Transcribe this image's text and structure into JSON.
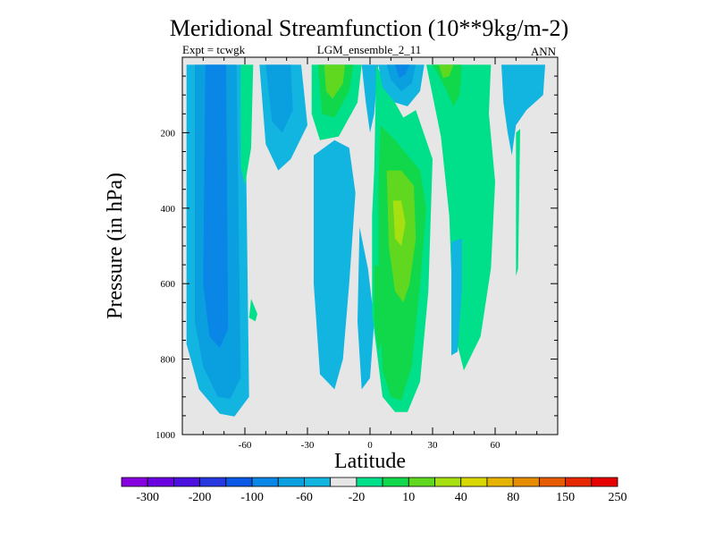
{
  "chart_data": {
    "type": "contour",
    "title": "Meridional Streamfunction (10**9kg/m-2)",
    "subtitle_left": "Expt = tcwgk",
    "subtitle_center": "LGM_ensemble_2_11",
    "subtitle_right": "ANN",
    "xlabel": "Latitude",
    "ylabel": "Pressure (in hPa)",
    "xlim": [
      -90,
      90
    ],
    "ylim": [
      1000,
      0
    ],
    "x_ticks": [
      -60,
      -30,
      0,
      30,
      60
    ],
    "y_ticks": [
      200,
      400,
      600,
      800,
      1000
    ],
    "colorbar": {
      "labels": [
        "-300",
        "-200",
        "-100",
        "-60",
        "-20",
        "10",
        "40",
        "80",
        "150",
        "250"
      ],
      "colors": [
        "#8700e0",
        "#6a00e0",
        "#4b10e0",
        "#2838e0",
        "#0a58e6",
        "#0a86e6",
        "#0aa0e0",
        "#12b4e0",
        "#e6e6e6",
        "#00e08a",
        "#10d84a",
        "#60d820",
        "#a6e010",
        "#d8d800",
        "#e6b400",
        "#e68c00",
        "#e65a00",
        "#e62800",
        "#e60000"
      ]
    },
    "regions": [
      {
        "level": "-20",
        "color": "#12b4e0",
        "points": [
          [
            -88,
            20
          ],
          [
            -60,
            20
          ],
          [
            -58,
            900
          ],
          [
            -65,
            952
          ],
          [
            -72,
            945
          ],
          [
            -82,
            880
          ],
          [
            -88,
            760
          ]
        ]
      },
      {
        "level": "-60",
        "color": "#0aa0e0",
        "points": [
          [
            -84,
            20
          ],
          [
            -64,
            20
          ],
          [
            -62,
            850
          ],
          [
            -67,
            905
          ],
          [
            -73,
            900
          ],
          [
            -80,
            820
          ],
          [
            -84,
            700
          ]
        ]
      },
      {
        "level": "-100",
        "color": "#0a86e6",
        "points": [
          [
            -79,
            20
          ],
          [
            -69,
            20
          ],
          [
            -68,
            720
          ],
          [
            -72,
            770
          ],
          [
            -77,
            740
          ],
          [
            -80,
            600
          ]
        ]
      },
      {
        "level": "10",
        "color": "#00e08a",
        "points": [
          [
            -62,
            20
          ],
          [
            -56,
            20
          ],
          [
            -57,
            240
          ],
          [
            -60,
            340
          ],
          [
            -62,
            290
          ]
        ]
      },
      {
        "level": "10",
        "color": "#00e08a",
        "points": [
          [
            -57,
            640
          ],
          [
            -54,
            680
          ],
          [
            -55,
            700
          ],
          [
            -58,
            690
          ]
        ]
      },
      {
        "level": "-20",
        "color": "#12b4e0",
        "points": [
          [
            -53,
            20
          ],
          [
            -33,
            20
          ],
          [
            -30,
            180
          ],
          [
            -38,
            270
          ],
          [
            -44,
            300
          ],
          [
            -50,
            230
          ]
        ]
      },
      {
        "level": "-60",
        "color": "#0aa0e0",
        "points": [
          [
            -50,
            20
          ],
          [
            -38,
            20
          ],
          [
            -37,
            140
          ],
          [
            -42,
            200
          ],
          [
            -47,
            170
          ]
        ]
      },
      {
        "level": "10",
        "color": "#00e08a",
        "points": [
          [
            -28,
            20
          ],
          [
            -4,
            20
          ],
          [
            -6,
            120
          ],
          [
            -15,
            210
          ],
          [
            -24,
            220
          ],
          [
            -28,
            150
          ]
        ]
      },
      {
        "level": "40",
        "color": "#10d84a",
        "points": [
          [
            -25,
            20
          ],
          [
            -8,
            20
          ],
          [
            -10,
            90
          ],
          [
            -17,
            160
          ],
          [
            -23,
            150
          ]
        ]
      },
      {
        "level": "80",
        "color": "#60d820",
        "points": [
          [
            -22,
            20
          ],
          [
            -12,
            20
          ],
          [
            -13,
            70
          ],
          [
            -18,
            110
          ],
          [
            -21,
            90
          ]
        ]
      },
      {
        "level": "-20",
        "color": "#12b4e0",
        "points": [
          [
            -4,
            20
          ],
          [
            4,
            20
          ],
          [
            2,
            150
          ],
          [
            0,
            200
          ],
          [
            -2,
            120
          ]
        ]
      },
      {
        "level": "-20",
        "color": "#12b4e0",
        "points": [
          [
            -27,
            260
          ],
          [
            -17,
            220
          ],
          [
            -10,
            240
          ],
          [
            -7,
            360
          ],
          [
            -10,
            600
          ],
          [
            -13,
            800
          ],
          [
            -17,
            880
          ],
          [
            -24,
            840
          ],
          [
            -27,
            600
          ]
        ]
      },
      {
        "level": "-20",
        "color": "#12b4e0",
        "points": [
          [
            -5,
            450
          ],
          [
            -1,
            560
          ],
          [
            2,
            700
          ],
          [
            0,
            850
          ],
          [
            -4,
            880
          ],
          [
            -6,
            700
          ]
        ]
      },
      {
        "level": "10",
        "color": "#00e08a",
        "points": [
          [
            3,
            20
          ],
          [
            10,
            100
          ],
          [
            16,
            160
          ],
          [
            22,
            140
          ],
          [
            30,
            270
          ],
          [
            28,
            620
          ],
          [
            24,
            860
          ],
          [
            18,
            940
          ],
          [
            12,
            940
          ],
          [
            6,
            900
          ],
          [
            1,
            680
          ],
          [
            1,
            420
          ],
          [
            2,
            300
          ]
        ]
      },
      {
        "level": "40",
        "color": "#10d84a",
        "points": [
          [
            5,
            180
          ],
          [
            12,
            220
          ],
          [
            18,
            260
          ],
          [
            24,
            300
          ],
          [
            27,
            400
          ],
          [
            24,
            600
          ],
          [
            20,
            820
          ],
          [
            15,
            910
          ],
          [
            10,
            900
          ],
          [
            6,
            830
          ],
          [
            4,
            600
          ],
          [
            4,
            350
          ]
        ]
      },
      {
        "level": "80",
        "color": "#60d820",
        "points": [
          [
            8,
            300
          ],
          [
            15,
            300
          ],
          [
            21,
            340
          ],
          [
            22,
            480
          ],
          [
            19,
            600
          ],
          [
            16,
            650
          ],
          [
            12,
            620
          ],
          [
            9,
            500
          ]
        ]
      },
      {
        "level": "150",
        "color": "#a6e010",
        "points": [
          [
            11,
            380
          ],
          [
            15,
            380
          ],
          [
            17,
            440
          ],
          [
            15,
            500
          ],
          [
            12,
            480
          ]
        ]
      },
      {
        "level": "40",
        "color": "#10d84a",
        "points": [
          [
            2,
            550
          ],
          [
            6,
            560
          ],
          [
            7,
            720
          ],
          [
            4,
            780
          ],
          [
            2,
            700
          ]
        ]
      },
      {
        "level": "-20",
        "color": "#12b4e0",
        "points": [
          [
            4,
            20
          ],
          [
            26,
            20
          ],
          [
            24,
            90
          ],
          [
            18,
            130
          ],
          [
            12,
            120
          ],
          [
            6,
            80
          ]
        ]
      },
      {
        "level": "-60",
        "color": "#0aa0e0",
        "points": [
          [
            8,
            20
          ],
          [
            22,
            20
          ],
          [
            20,
            70
          ],
          [
            15,
            90
          ],
          [
            10,
            60
          ]
        ]
      },
      {
        "level": "-100",
        "color": "#0a86e6",
        "points": [
          [
            12,
            20
          ],
          [
            19,
            20
          ],
          [
            17,
            45
          ],
          [
            14,
            55
          ]
        ]
      },
      {
        "level": "10",
        "color": "#00e08a",
        "points": [
          [
            27,
            20
          ],
          [
            58,
            20
          ],
          [
            57,
            150
          ],
          [
            60,
            330
          ],
          [
            58,
            560
          ],
          [
            53,
            740
          ],
          [
            45,
            830
          ],
          [
            40,
            720
          ],
          [
            38,
            420
          ],
          [
            34,
            210
          ]
        ]
      },
      {
        "level": "40",
        "color": "#10d84a",
        "points": [
          [
            30,
            20
          ],
          [
            44,
            20
          ],
          [
            43,
            100
          ],
          [
            40,
            130
          ],
          [
            36,
            80
          ]
        ]
      },
      {
        "level": "80",
        "color": "#60d820",
        "points": [
          [
            33,
            20
          ],
          [
            40,
            20
          ],
          [
            38,
            50
          ],
          [
            35,
            55
          ]
        ]
      },
      {
        "level": "-20",
        "color": "#12b4e0",
        "points": [
          [
            39,
            490
          ],
          [
            44,
            480
          ],
          [
            44,
            620
          ],
          [
            42,
            780
          ],
          [
            39,
            790
          ]
        ]
      },
      {
        "level": "-20",
        "color": "#12b4e0",
        "points": [
          [
            63,
            20
          ],
          [
            84,
            20
          ],
          [
            83,
            100
          ],
          [
            75,
            140
          ],
          [
            70,
            180
          ],
          [
            68,
            260
          ],
          [
            66,
            200
          ],
          [
            64,
            120
          ]
        ]
      },
      {
        "level": "10",
        "color": "#00e08a",
        "points": [
          [
            70,
            200
          ],
          [
            72,
            190
          ],
          [
            71,
            560
          ],
          [
            70,
            580
          ],
          [
            70,
            420
          ]
        ]
      }
    ]
  }
}
